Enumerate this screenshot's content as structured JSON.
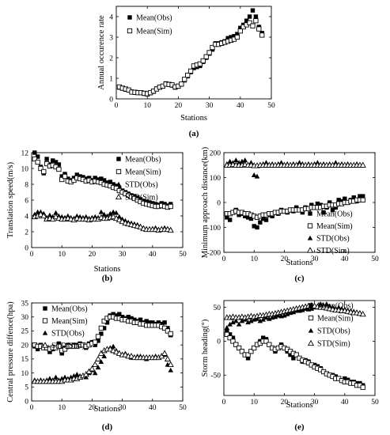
{
  "chart_data": [
    {
      "id": "a",
      "type": "scatter",
      "panel_label": "(a)",
      "xlabel": "Stations",
      "ylabel": "Annual occurence rate",
      "xlim": [
        0,
        50
      ],
      "ylim": [
        0,
        4.5
      ],
      "xticks": [
        "0",
        "10",
        "20",
        "30",
        "40",
        "50"
      ],
      "yticks": [
        "0",
        "1",
        "2",
        "3",
        "4"
      ],
      "legend_position": "top-left",
      "series": [
        {
          "name": "Mean(Obs)",
          "marker": "filled-square",
          "values": [
            0.55,
            0.5,
            0.45,
            0.42,
            0.35,
            0.3,
            0.32,
            0.3,
            0.25,
            0.22,
            0.28,
            0.35,
            0.5,
            0.55,
            0.6,
            0.75,
            0.72,
            0.65,
            0.55,
            0.6,
            0.7,
            0.9,
            1.1,
            1.3,
            1.5,
            1.55,
            1.6,
            1.8,
            2.0,
            2.2,
            2.4,
            2.7,
            2.7,
            2.75,
            2.8,
            2.95,
            3.0,
            3.05,
            3.15,
            3.45,
            3.6,
            3.8,
            4.0,
            4.3,
            4.0,
            3.5,
            3.2
          ]
        },
        {
          "name": "Mean(Sim)",
          "marker": "open-square",
          "values": [
            0.58,
            0.52,
            0.48,
            0.43,
            0.33,
            0.32,
            0.3,
            0.3,
            0.27,
            0.25,
            0.3,
            0.38,
            0.48,
            0.57,
            0.62,
            0.72,
            0.7,
            0.68,
            0.58,
            0.62,
            0.72,
            0.95,
            1.15,
            1.35,
            1.6,
            1.65,
            1.7,
            1.85,
            2.05,
            2.25,
            2.5,
            2.65,
            2.65,
            2.7,
            2.75,
            2.8,
            2.85,
            2.9,
            3.0,
            3.3,
            3.5,
            3.6,
            3.7,
            3.55,
            3.8,
            3.4,
            3.1
          ]
        }
      ]
    },
    {
      "id": "b",
      "type": "scatter",
      "panel_label": "(b)",
      "xlabel": "Stations",
      "ylabel": "Translation speed(m/s)",
      "xlim": [
        0,
        50
      ],
      "ylim": [
        0,
        12
      ],
      "xticks": [
        "0",
        "10",
        "20",
        "30",
        "40",
        "50"
      ],
      "yticks": [
        "0",
        "2",
        "4",
        "6",
        "8",
        "10",
        "12"
      ],
      "legend_position": "top-right",
      "series": [
        {
          "name": "Mean(Obs)",
          "marker": "filled-square",
          "values": [
            12.0,
            11.5,
            10.2,
            9.4,
            11.2,
            10.5,
            11.0,
            10.8,
            10.5,
            9.0,
            9.3,
            8.7,
            8.5,
            8.8,
            9.2,
            9.0,
            8.9,
            8.7,
            8.8,
            8.5,
            8.8,
            8.6,
            8.7,
            8.5,
            8.2,
            8.3,
            8.0,
            7.8,
            7.5,
            7.2,
            7.0,
            6.8,
            6.6,
            6.5,
            6.3,
            6.1,
            5.9,
            5.8,
            5.7,
            5.6,
            5.5,
            5.4,
            5.6,
            5.5,
            5.3,
            5.5
          ]
        },
        {
          "name": "Mean(Sim)",
          "marker": "open-square",
          "values": [
            11.2,
            10.8,
            10.0,
            9.6,
            10.6,
            10.3,
            10.4,
            10.2,
            9.9,
            8.6,
            9.0,
            8.4,
            8.3,
            8.5,
            8.8,
            8.7,
            8.6,
            8.4,
            8.5,
            8.3,
            8.4,
            8.3,
            8.2,
            8.0,
            7.9,
            7.8,
            7.6,
            7.5,
            7.2,
            7.0,
            6.8,
            6.6,
            6.4,
            6.2,
            6.0,
            5.8,
            5.6,
            5.5,
            5.4,
            5.3,
            5.2,
            5.2,
            5.3,
            5.2,
            5.1,
            5.2
          ]
        },
        {
          "name": "STD(Obs)",
          "marker": "filled-triangle",
          "values": [
            4.2,
            4.5,
            4.5,
            4.3,
            3.8,
            4.1,
            3.9,
            4.4,
            4.0,
            3.9,
            3.8,
            4.0,
            3.8,
            3.7,
            4.0,
            3.9,
            3.8,
            3.9,
            3.7,
            3.8,
            3.9,
            3.8,
            4.5,
            4.2,
            4.0,
            4.3,
            4.5,
            4.4,
            3.9,
            3.6,
            3.4,
            3.2,
            3.1,
            3.0,
            2.9,
            2.7,
            2.5,
            2.4,
            2.3,
            2.4,
            2.5,
            2.3,
            2.4,
            2.5,
            2.4,
            2.3
          ]
        },
        {
          "name": "STD(Sim)",
          "marker": "open-triangle",
          "values": [
            3.9,
            4.0,
            4.2,
            4.0,
            3.6,
            3.7,
            3.6,
            3.9,
            3.7,
            3.6,
            3.6,
            3.7,
            3.6,
            3.5,
            3.7,
            3.6,
            3.6,
            3.6,
            3.5,
            3.6,
            3.6,
            3.6,
            3.8,
            3.7,
            3.7,
            3.8,
            3.9,
            3.7,
            3.5,
            3.3,
            3.1,
            3.0,
            2.9,
            2.8,
            2.7,
            2.6,
            2.4,
            2.3,
            2.3,
            2.3,
            2.3,
            2.2,
            2.3,
            2.3,
            2.3,
            2.2
          ]
        }
      ]
    },
    {
      "id": "c",
      "type": "scatter",
      "panel_label": "(c)",
      "xlabel": "Stations",
      "ylabel": "Minimum approach distance(km)",
      "xlim": [
        0,
        50
      ],
      "ylim": [
        -200,
        200
      ],
      "xticks": [
        "0",
        "10",
        "20",
        "30",
        "40",
        "50"
      ],
      "yticks": [
        "-200",
        "-100",
        "0",
        "100",
        "200"
      ],
      "legend_position": "lower-right",
      "series": [
        {
          "name": "Mean(Obs)",
          "marker": "filled-square",
          "values": [
            -60,
            -70,
            -40,
            -30,
            -50,
            -45,
            -55,
            -60,
            -65,
            -95,
            -100,
            -80,
            -65,
            -70,
            -50,
            -55,
            -40,
            -45,
            -30,
            -35,
            -40,
            -30,
            -35,
            -20,
            -30,
            -40,
            -20,
            -25,
            -10,
            -20,
            -5,
            -10,
            -40,
            -20,
            0,
            -30,
            -20,
            10,
            5,
            15,
            0,
            10,
            20,
            5,
            25,
            25
          ]
        },
        {
          "name": "Mean(Sim)",
          "marker": "open-square",
          "values": [
            -45,
            -45,
            -40,
            -35,
            -40,
            -40,
            -45,
            -45,
            -50,
            -55,
            -60,
            -55,
            -50,
            -50,
            -45,
            -45,
            -40,
            -40,
            -35,
            -35,
            -35,
            -30,
            -30,
            -30,
            -30,
            -30,
            -25,
            -25,
            -20,
            -20,
            -20,
            -20,
            -15,
            -15,
            -10,
            -10,
            -10,
            -5,
            -5,
            0,
            0,
            5,
            5,
            10,
            10,
            10
          ]
        },
        {
          "name": "STD(Obs)",
          "marker": "filled-triangle",
          "values": [
            155,
            165,
            160,
            170,
            160,
            165,
            170,
            150,
            160,
            110,
            105,
            150,
            155,
            160,
            150,
            155,
            150,
            155,
            160,
            150,
            155,
            150,
            155,
            150,
            160,
            155,
            150,
            155,
            150,
            155,
            160,
            150,
            155,
            150,
            155,
            150,
            160,
            150,
            155,
            150,
            155,
            150,
            150,
            155,
            150,
            150
          ]
        },
        {
          "name": "STD(Sim)",
          "marker": "open-triangle",
          "values": [
            150,
            150,
            152,
            150,
            150,
            150,
            152,
            150,
            150,
            148,
            148,
            150,
            150,
            150,
            150,
            150,
            150,
            150,
            150,
            150,
            150,
            150,
            150,
            150,
            150,
            150,
            150,
            150,
            150,
            150,
            150,
            150,
            150,
            150,
            150,
            150,
            150,
            150,
            150,
            150,
            150,
            150,
            150,
            150,
            150,
            150
          ]
        }
      ]
    },
    {
      "id": "d",
      "type": "scatter",
      "panel_label": "(d)",
      "xlabel": "Stations",
      "ylabel": "Central pressure diffence(hpa)",
      "xlim": [
        0,
        50
      ],
      "ylim": [
        0,
        35
      ],
      "xticks": [
        "0",
        "10",
        "20",
        "30",
        "40",
        "50"
      ],
      "yticks": [
        "0",
        "5",
        "10",
        "15",
        "20",
        "25",
        "30",
        "35"
      ],
      "legend_position": "top-left",
      "series": [
        {
          "name": "Mean(Obs)",
          "marker": "filled-square",
          "values": [
            19.5,
            18.5,
            20.0,
            19.0,
            18.8,
            17.5,
            18.5,
            19.0,
            20.5,
            17.0,
            19.0,
            20.0,
            19.5,
            20.0,
            20.0,
            20.5,
            20.0,
            19.0,
            20.5,
            21.0,
            20.0,
            21.5,
            24.0,
            26.0,
            28.0,
            30.5,
            31.0,
            30.5,
            31.0,
            30.0,
            29.5,
            30.0,
            29.5,
            29.0,
            28.5,
            29.0,
            28.0,
            28.5,
            28.0,
            28.0,
            27.5,
            28.0,
            27.5,
            28.0,
            26.0,
            23.5
          ]
        },
        {
          "name": "Mean(Sim)",
          "marker": "open-square",
          "values": [
            20.0,
            19.5,
            19.5,
            19.0,
            19.0,
            18.5,
            19.0,
            19.0,
            19.5,
            18.0,
            18.5,
            19.5,
            19.5,
            19.5,
            19.5,
            20.0,
            20.0,
            19.5,
            20.0,
            20.5,
            21.0,
            23.0,
            26.0,
            28.5,
            29.5,
            30.0,
            30.0,
            29.5,
            29.5,
            29.0,
            29.0,
            28.5,
            28.5,
            28.0,
            28.0,
            27.5,
            27.5,
            27.0,
            27.0,
            27.0,
            27.0,
            27.0,
            26.5,
            26.0,
            25.0,
            24.0
          ]
        },
        {
          "name": "STD(Obs)",
          "marker": "filled-triangle",
          "values": [
            7.5,
            7.0,
            7.5,
            7.0,
            7.5,
            8.0,
            7.5,
            8.5,
            7.5,
            8.0,
            8.5,
            8.0,
            8.5,
            9.0,
            9.5,
            9.0,
            9.0,
            8.5,
            10.0,
            11.0,
            10.0,
            12.0,
            14.0,
            16.0,
            18.5,
            19.0,
            19.5,
            18.0,
            17.0,
            16.5,
            17.0,
            16.0,
            15.5,
            15.5,
            16.0,
            16.0,
            15.5,
            15.0,
            15.5,
            15.5,
            16.0,
            15.5,
            16.0,
            16.5,
            13.0,
            11.0
          ]
        },
        {
          "name": "STD(Sim)",
          "marker": "open-triangle",
          "values": [
            7.0,
            7.0,
            7.0,
            7.0,
            7.0,
            7.0,
            7.0,
            7.0,
            7.0,
            7.0,
            7.5,
            7.5,
            7.5,
            8.0,
            8.0,
            8.5,
            9.0,
            9.5,
            10.5,
            11.5,
            13.0,
            15.0,
            17.0,
            18.0,
            18.5,
            18.5,
            18.0,
            17.5,
            17.0,
            16.5,
            16.5,
            16.0,
            16.0,
            15.5,
            15.5,
            15.5,
            15.5,
            15.5,
            15.5,
            15.5,
            15.5,
            15.5,
            16.0,
            17.0,
            15.0,
            13.0
          ]
        }
      ]
    },
    {
      "id": "e",
      "type": "scatter",
      "panel_label": "(e)",
      "xlabel": "Stations",
      "ylabel": "Storm heading(°)",
      "xlim": [
        0,
        50
      ],
      "ylim": [
        -80,
        60
      ],
      "xticks": [
        "0",
        "10",
        "20",
        "30",
        "40",
        "50"
      ],
      "yticks": [
        "-50",
        "0",
        "50"
      ],
      "legend_position": "lower-right",
      "series": [
        {
          "name": "Mean(Obs)",
          "marker": "filled-square",
          "values": [
            15,
            10,
            5,
            -5,
            -10,
            -15,
            -20,
            -25,
            -15,
            -10,
            -5,
            0,
            5,
            3,
            -5,
            -10,
            -15,
            -10,
            -5,
            -10,
            -15,
            -20,
            -25,
            -20,
            -25,
            -30,
            -28,
            -30,
            -35,
            -35,
            -37,
            -40,
            -45,
            -48,
            -50,
            -50,
            -52,
            -55,
            -58,
            -55,
            -57,
            -60,
            -60,
            -62,
            -62,
            -65
          ]
        },
        {
          "name": "Mean(Sim)",
          "marker": "open-square",
          "values": [
            10,
            5,
            0,
            -5,
            -10,
            -15,
            -20,
            -20,
            -15,
            -10,
            -5,
            -3,
            0,
            0,
            -5,
            -10,
            -12,
            -10,
            -8,
            -10,
            -12,
            -15,
            -18,
            -20,
            -25,
            -28,
            -30,
            -32,
            -35,
            -38,
            -40,
            -42,
            -45,
            -48,
            -50,
            -52,
            -55,
            -55,
            -58,
            -60,
            -60,
            -62,
            -62,
            -65,
            -65,
            -68
          ]
        },
        {
          "name": "STD(Obs)",
          "marker": "filled-triangle",
          "values": [
            20,
            25,
            28,
            30,
            25,
            30,
            32,
            28,
            30,
            32,
            33,
            30,
            32,
            35,
            33,
            35,
            36,
            38,
            37,
            38,
            40,
            42,
            43,
            45,
            45,
            46,
            48,
            47,
            48,
            50,
            52,
            55,
            53,
            55,
            52,
            50,
            48,
            50,
            48,
            47,
            46,
            45,
            44,
            43,
            42,
            40
          ]
        },
        {
          "name": "STD(Sim)",
          "marker": "open-triangle",
          "values": [
            35,
            35,
            36,
            35,
            35,
            36,
            35,
            36,
            37,
            36,
            37,
            38,
            38,
            39,
            40,
            40,
            41,
            42,
            43,
            44,
            45,
            46,
            47,
            48,
            49,
            50,
            51,
            52,
            53,
            52,
            51,
            50,
            50,
            49,
            48,
            47,
            46,
            46,
            45,
            45,
            44,
            43,
            42,
            42,
            41,
            40
          ]
        }
      ]
    }
  ]
}
